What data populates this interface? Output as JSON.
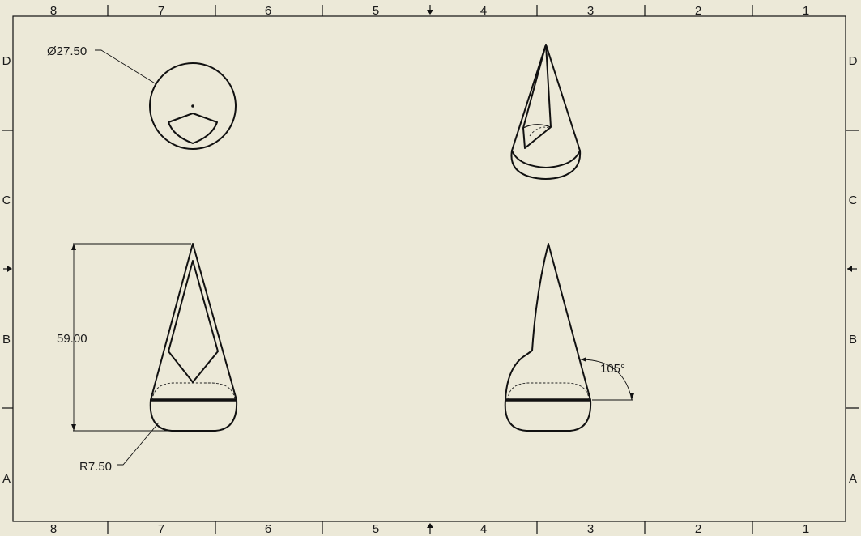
{
  "sheet": {
    "background": "#ECE9D8",
    "line_color": "#111111",
    "column_labels": [
      "8",
      "7",
      "6",
      "5",
      "4",
      "3",
      "2",
      "1"
    ],
    "row_labels": [
      "D",
      "C",
      "B",
      "A"
    ]
  },
  "views": {
    "top": {
      "diameter_label": "Ø27.50"
    },
    "front": {
      "height_label": "59.00",
      "radius_label": "R7.50"
    },
    "side": {
      "angle_label": "105°"
    },
    "isometric": {}
  },
  "icons": {
    "center_arrow_top": "arrow-down-icon",
    "center_arrow_bottom": "arrow-up-icon",
    "center_arrow_left": "arrow-right-icon",
    "center_arrow_right": "arrow-left-icon"
  }
}
